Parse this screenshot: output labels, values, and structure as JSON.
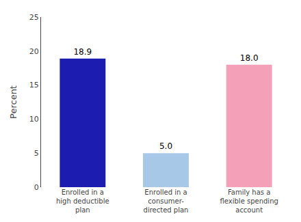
{
  "chart_data": {
    "type": "bar",
    "ylabel": "Percent",
    "categories": [
      "Enrolled in a\nhigh deductible\nplan",
      "Enrolled in a\nconsumer-\ndirected plan",
      "Family has a\nflexible spending\naccount"
    ],
    "values": [
      18.9,
      5.0,
      18.0
    ],
    "value_labels": [
      "18.9",
      "5.0",
      "18.0"
    ],
    "colors": [
      "#1c1cb0",
      "#a8c8e8",
      "#f4a0b8"
    ],
    "ylim": [
      0,
      25
    ],
    "yticks": [
      0,
      5,
      10,
      15,
      20,
      25
    ],
    "grid": false,
    "data_labels": true
  }
}
